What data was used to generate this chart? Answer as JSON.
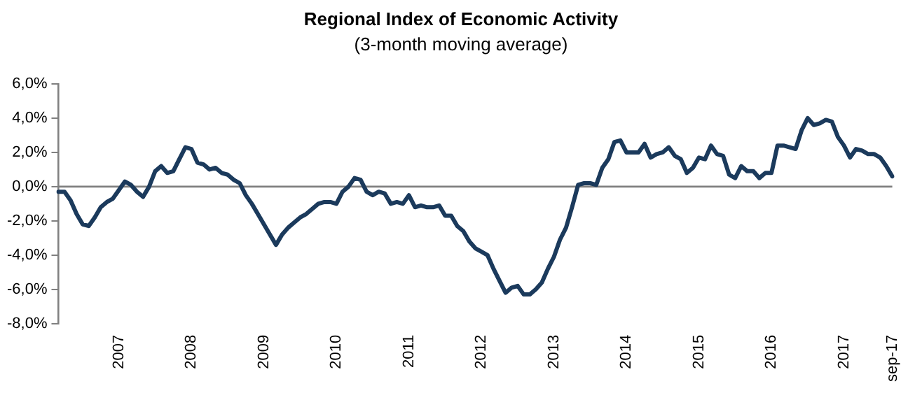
{
  "chart_data": {
    "type": "line",
    "title": "Regional Index of Economic Activity",
    "subtitle": "(3-month moving average)",
    "categories": [
      null,
      null,
      null,
      null,
      null,
      null,
      null,
      null,
      null,
      null,
      "2007",
      null,
      null,
      null,
      null,
      null,
      null,
      null,
      null,
      null,
      null,
      null,
      "2008",
      null,
      null,
      null,
      null,
      null,
      null,
      null,
      null,
      null,
      null,
      null,
      "2009",
      null,
      null,
      null,
      null,
      null,
      null,
      null,
      null,
      null,
      null,
      null,
      "2010",
      null,
      null,
      null,
      null,
      null,
      null,
      null,
      null,
      null,
      null,
      null,
      "2011",
      null,
      null,
      null,
      null,
      null,
      null,
      null,
      null,
      null,
      null,
      null,
      "2012",
      null,
      null,
      null,
      null,
      null,
      null,
      null,
      null,
      null,
      null,
      null,
      "2013",
      null,
      null,
      null,
      null,
      null,
      null,
      null,
      null,
      null,
      null,
      null,
      "2014",
      null,
      null,
      null,
      null,
      null,
      null,
      null,
      null,
      null,
      null,
      null,
      "2015",
      null,
      null,
      null,
      null,
      null,
      null,
      null,
      null,
      null,
      null,
      null,
      "2016",
      null,
      null,
      null,
      null,
      null,
      null,
      null,
      null,
      null,
      null,
      null,
      "2017",
      null,
      null,
      null,
      null,
      null,
      null,
      null,
      "sep-17"
    ],
    "series": [
      {
        "color": "#1b3a5c",
        "values": [
          -0.3,
          -0.3,
          -0.8,
          -1.6,
          -2.2,
          -2.3,
          -1.8,
          -1.2,
          -0.9,
          -0.7,
          -0.2,
          0.3,
          0.1,
          -0.3,
          -0.6,
          0.0,
          0.9,
          1.2,
          0.8,
          0.9,
          1.6,
          2.3,
          2.2,
          1.4,
          1.3,
          1.0,
          1.1,
          0.8,
          0.7,
          0.4,
          0.2,
          -0.5,
          -1.0,
          -1.6,
          -2.2,
          -2.8,
          -3.4,
          -2.8,
          -2.4,
          -2.1,
          -1.8,
          -1.6,
          -1.3,
          -1.0,
          -0.9,
          -0.9,
          -1.0,
          -0.3,
          0.0,
          0.5,
          0.4,
          -0.3,
          -0.5,
          -0.3,
          -0.4,
          -1.0,
          -0.9,
          -1.0,
          -0.5,
          -1.2,
          -1.1,
          -1.2,
          -1.2,
          -1.1,
          -1.7,
          -1.7,
          -2.3,
          -2.6,
          -3.2,
          -3.6,
          -3.8,
          -4.0,
          -4.8,
          -5.5,
          -6.2,
          -5.9,
          -5.8,
          -6.3,
          -6.3,
          -6.0,
          -5.6,
          -4.8,
          -4.1,
          -3.1,
          -2.4,
          -1.2,
          0.1,
          0.2,
          0.2,
          0.1,
          1.1,
          1.6,
          2.6,
          2.7,
          2.0,
          2.0,
          2.0,
          2.5,
          1.7,
          1.9,
          2.0,
          2.3,
          1.8,
          1.6,
          0.8,
          1.1,
          1.7,
          1.6,
          2.4,
          1.9,
          1.8,
          0.7,
          0.5,
          1.2,
          0.9,
          0.9,
          0.5,
          0.8,
          0.8,
          2.4,
          2.4,
          2.3,
          2.2,
          3.3,
          4.0,
          3.6,
          3.7,
          3.9,
          3.8,
          2.9,
          2.4,
          1.7,
          2.2,
          2.1,
          1.9,
          1.9,
          1.7,
          1.2,
          0.6
        ]
      }
    ],
    "ylim": [
      -8,
      6
    ],
    "yticks": [
      {
        "value": -8,
        "label": "-8,0%"
      },
      {
        "value": -6,
        "label": "-6,0%"
      },
      {
        "value": -4,
        "label": "-4,0%"
      },
      {
        "value": -2,
        "label": "-2,0%"
      },
      {
        "value": 0,
        "label": "0,0%"
      },
      {
        "value": 2,
        "label": "2,0%"
      },
      {
        "value": 4,
        "label": "4,0%"
      },
      {
        "value": 6,
        "label": "6,0%"
      }
    ],
    "ref_lines": [
      {
        "axis": "y",
        "value": 0,
        "color": "#808080"
      }
    ],
    "grid": false,
    "legend": false,
    "marker": "none",
    "line_style": "solid"
  }
}
